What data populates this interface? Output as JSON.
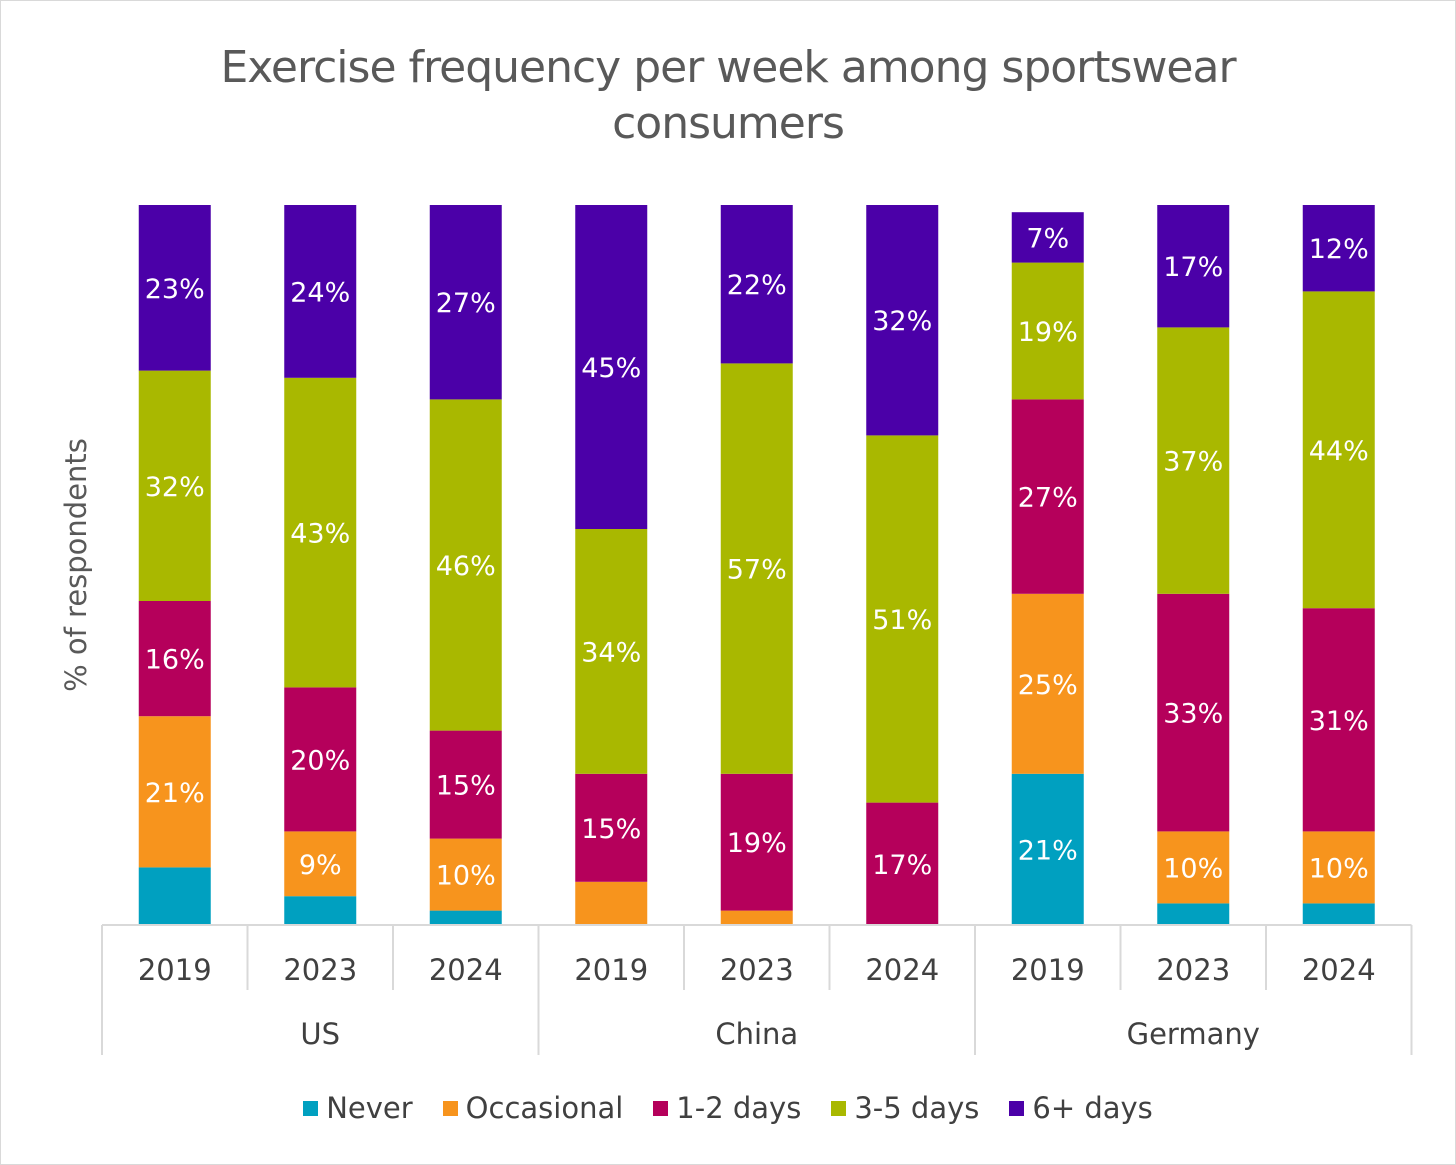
{
  "chart_data": {
    "type": "bar",
    "stacked": true,
    "title": "Exercise frequency per week among sportswear consumers",
    "ylabel": "% of respondents",
    "groups": [
      {
        "name": "US",
        "categories": [
          "2019",
          "2023",
          "2024"
        ]
      },
      {
        "name": "China",
        "categories": [
          "2019",
          "2023",
          "2024"
        ]
      },
      {
        "name": "Germany",
        "categories": [
          "2019",
          "2023",
          "2024"
        ]
      }
    ],
    "series": [
      {
        "name": "Never",
        "color": "#00A0C0",
        "values": [
          8,
          4,
          2,
          0,
          0,
          0,
          21,
          3,
          3
        ]
      },
      {
        "name": "Occasional",
        "color": "#F7941D",
        "values": [
          21,
          9,
          10,
          6,
          2,
          0,
          25,
          10,
          10
        ]
      },
      {
        "name": "1-2 days",
        "color": "#B5005B",
        "values": [
          16,
          20,
          15,
          15,
          19,
          17,
          27,
          33,
          31
        ]
      },
      {
        "name": "3-5 days",
        "color": "#A9B800",
        "values": [
          32,
          43,
          46,
          34,
          57,
          51,
          19,
          37,
          44
        ]
      },
      {
        "name": "6+ days",
        "color": "#4B00A8",
        "values": [
          23,
          24,
          27,
          45,
          22,
          32,
          7,
          17,
          12
        ]
      }
    ],
    "data_labels": [
      [
        "",
        "21%",
        "16%",
        "32%",
        "23%"
      ],
      [
        "",
        "9%",
        "20%",
        "43%",
        "24%"
      ],
      [
        "",
        "10%",
        "15%",
        "46%",
        "27%"
      ],
      [
        "",
        "",
        "15%",
        "34%",
        "45%"
      ],
      [
        "",
        "",
        "19%",
        "57%",
        "22%"
      ],
      [
        "",
        "",
        "17%",
        "51%",
        "32%"
      ],
      [
        "21%",
        "25%",
        "27%",
        "19%",
        "7%"
      ],
      [
        "",
        "10%",
        "33%",
        "37%",
        "17%"
      ],
      [
        "",
        "10%",
        "31%",
        "44%",
        "12%"
      ]
    ],
    "ylim": [
      0,
      100
    ],
    "grid": false,
    "legend_position": "bottom"
  }
}
